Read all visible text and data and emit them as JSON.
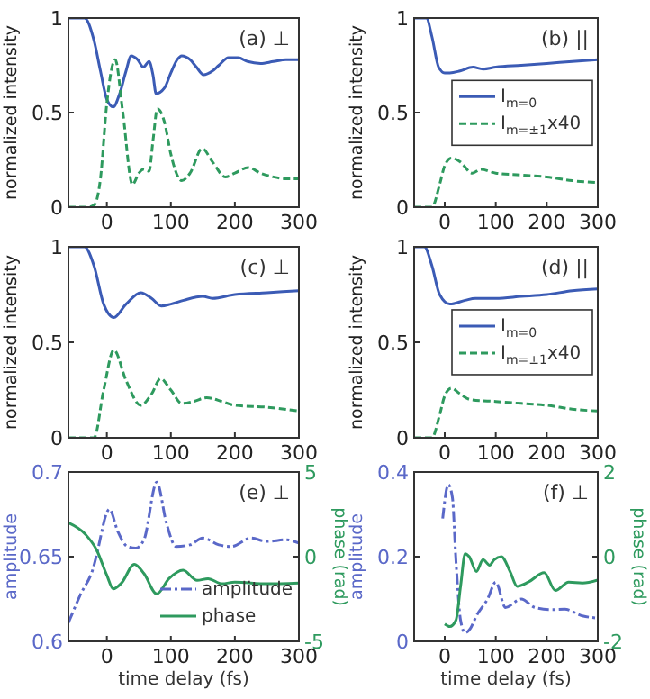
{
  "chart_data": [
    {
      "type": "line",
      "ylabel": "normalized intensity",
      "annotations": [
        "(a) ⊥"
      ],
      "xlim": [
        -60,
        300
      ],
      "xticks": [
        0,
        100,
        200,
        300
      ],
      "ylim": [
        0,
        1
      ],
      "yticks": [
        0,
        0.5,
        1
      ],
      "series": [
        {
          "color": "#3b5bb5",
          "line_style": "solid",
          "x": [
            -60,
            -35,
            -20,
            -10,
            0,
            10,
            20,
            30,
            38,
            48,
            57,
            66,
            72,
            77,
            90,
            100,
            110,
            117,
            130,
            140,
            151,
            165,
            175,
            190,
            205,
            220,
            240,
            260,
            280,
            300
          ],
          "values": [
            1,
            1,
            0.88,
            0.72,
            0.57,
            0.53,
            0.6,
            0.72,
            0.8,
            0.78,
            0.74,
            0.77,
            0.7,
            0.6,
            0.63,
            0.71,
            0.78,
            0.8,
            0.78,
            0.74,
            0.7,
            0.72,
            0.75,
            0.79,
            0.79,
            0.77,
            0.76,
            0.77,
            0.78,
            0.78
          ]
        },
        {
          "color": "#2e9a5e",
          "line_style": "dashed",
          "x": [
            -60,
            -30,
            -20,
            -10,
            0,
            13,
            25,
            40,
            50,
            57,
            66,
            72,
            79,
            90,
            100,
            117,
            130,
            149,
            165,
            185,
            200,
            221,
            240,
            260,
            280,
            300
          ],
          "values": [
            0,
            0,
            0.01,
            0.15,
            0.55,
            0.78,
            0.5,
            0.12,
            0.18,
            0.2,
            0.19,
            0.35,
            0.52,
            0.45,
            0.28,
            0.14,
            0.18,
            0.31,
            0.24,
            0.16,
            0.18,
            0.21,
            0.18,
            0.16,
            0.15,
            0.15
          ]
        }
      ]
    },
    {
      "type": "line",
      "ylabel": "normalized intensity",
      "annotations": [
        "(b) ||"
      ],
      "legend": "right",
      "xlim": [
        -60,
        300
      ],
      "xticks": [
        0,
        100,
        200,
        300
      ],
      "ylim": [
        0,
        1
      ],
      "yticks": [
        0,
        0.5,
        1
      ],
      "series": [
        {
          "name": "I$_{m=0}$",
          "color": "#3b5bb5",
          "line_style": "solid",
          "x": [
            -60,
            -36,
            -25,
            -12,
            0,
            10,
            30,
            55,
            75,
            100,
            150,
            200,
            250,
            300
          ],
          "values": [
            1,
            1,
            0.9,
            0.74,
            0.71,
            0.71,
            0.72,
            0.74,
            0.73,
            0.74,
            0.75,
            0.76,
            0.77,
            0.78
          ]
        },
        {
          "name": "I$_{m=±1}$x40",
          "color": "#2e9a5e",
          "line_style": "dashed",
          "x": [
            -60,
            -25,
            -10,
            0,
            13,
            30,
            54,
            71,
            100,
            150,
            200,
            250,
            300
          ],
          "values": [
            0,
            0,
            0.12,
            0.22,
            0.26,
            0.24,
            0.18,
            0.2,
            0.18,
            0.17,
            0.16,
            0.14,
            0.13
          ]
        }
      ]
    },
    {
      "type": "line",
      "ylabel": "normalized intensity",
      "annotations": [
        "(c) ⊥"
      ],
      "xlim": [
        -60,
        300
      ],
      "xticks": [
        0,
        100,
        200,
        300
      ],
      "ylim": [
        0,
        1
      ],
      "yticks": [
        0,
        0.5,
        1
      ],
      "series": [
        {
          "color": "#3b5bb5",
          "line_style": "solid",
          "x": [
            -60,
            -35,
            -20,
            -5,
            11,
            30,
            53,
            70,
            85,
            100,
            120,
            150,
            165,
            200,
            250,
            300
          ],
          "values": [
            1,
            1,
            0.9,
            0.7,
            0.63,
            0.7,
            0.76,
            0.73,
            0.69,
            0.7,
            0.72,
            0.74,
            0.73,
            0.75,
            0.76,
            0.77
          ]
        },
        {
          "color": "#2e9a5e",
          "line_style": "dashed",
          "x": [
            -60,
            -20,
            -5,
            11,
            30,
            53,
            70,
            84,
            100,
            117,
            135,
            156,
            180,
            200,
            250,
            300
          ],
          "values": [
            0,
            0,
            0.25,
            0.46,
            0.3,
            0.17,
            0.23,
            0.31,
            0.25,
            0.18,
            0.19,
            0.21,
            0.19,
            0.17,
            0.16,
            0.14
          ]
        }
      ]
    },
    {
      "type": "line",
      "ylabel": "normalized intensity",
      "annotations": [
        "(d) ||"
      ],
      "legend": "right",
      "xlim": [
        -60,
        300
      ],
      "xticks": [
        0,
        100,
        200,
        300
      ],
      "ylim": [
        0,
        1
      ],
      "yticks": [
        0,
        0.5,
        1
      ],
      "series": [
        {
          "name": "I$_{m=0}$",
          "color": "#3b5bb5",
          "line_style": "solid",
          "x": [
            -60,
            -40,
            -25,
            -10,
            10,
            40,
            60,
            100,
            150,
            200,
            250,
            300
          ],
          "values": [
            1,
            1,
            0.9,
            0.75,
            0.7,
            0.72,
            0.73,
            0.73,
            0.74,
            0.75,
            0.77,
            0.78
          ]
        },
        {
          "name": "I$_{m=±1}$x40",
          "color": "#2e9a5e",
          "line_style": "dashed",
          "x": [
            -60,
            -25,
            -10,
            0,
            13,
            30,
            50,
            100,
            150,
            200,
            250,
            300
          ],
          "values": [
            0,
            0,
            0.12,
            0.22,
            0.26,
            0.23,
            0.2,
            0.19,
            0.18,
            0.17,
            0.15,
            0.14
          ]
        }
      ]
    },
    {
      "type": "line",
      "xlabel": "time delay (fs)",
      "ylabel": "amplitude",
      "y2label": "phase (rad)",
      "annotations": [
        "(e) ⊥"
      ],
      "legend": "bottom right",
      "xlim": [
        -60,
        300
      ],
      "xticks": [
        0,
        100,
        200,
        300
      ],
      "ylim": [
        0.6,
        0.7
      ],
      "yticks": [
        0.6,
        0.65,
        0.7
      ],
      "y2lim": [
        -5,
        5
      ],
      "y2ticks": [
        -5,
        0,
        5
      ],
      "series": [
        {
          "name": "amplitude",
          "color": "#5a68c8",
          "line_style": "dashdot",
          "x": [
            -60,
            -42,
            -20,
            -16,
            4,
            17,
            32,
            45,
            58,
            78,
            93,
            108,
            130,
            150,
            175,
            195,
            225,
            250,
            280,
            300
          ],
          "values": [
            0.611,
            0.627,
            0.645,
            0.651,
            0.678,
            0.665,
            0.656,
            0.655,
            0.66,
            0.694,
            0.67,
            0.656,
            0.657,
            0.661,
            0.657,
            0.656,
            0.661,
            0.659,
            0.66,
            0.658
          ]
        },
        {
          "name": "phase",
          "color": "#2e9a5e",
          "line_style": "solid",
          "axis": "y2",
          "x": [
            -60,
            -33,
            -16,
            0,
            10,
            23,
            43,
            58,
            78,
            97,
            119,
            141,
            158,
            180,
            200,
            250,
            300
          ],
          "values": [
            2,
            1.3,
            0.4,
            -1.1,
            -1.9,
            -1.55,
            -0.45,
            -1,
            -2.2,
            -1.3,
            -0.8,
            -1.4,
            -1.3,
            -1.6,
            -1.5,
            -1.6,
            -1.55
          ]
        }
      ]
    },
    {
      "type": "line",
      "xlabel": "time delay (fs)",
      "ylabel": "amplitude",
      "y2label": "phase (rad)",
      "annotations": [
        "(f) ⊥"
      ],
      "xlim": [
        -60,
        300
      ],
      "xticks": [
        0,
        100,
        200,
        300
      ],
      "ylim": [
        0,
        0.4
      ],
      "yticks": [
        0,
        0.2,
        0.4
      ],
      "y2lim": [
        -2,
        2
      ],
      "y2ticks": [
        -2,
        0,
        2
      ],
      "series": [
        {
          "color": "#5a68c8",
          "line_style": "dashdot",
          "x": [
            -4,
            7,
            15,
            22,
            31,
            40,
            50,
            62,
            84,
            100,
            119,
            150,
            177,
            210,
            235,
            270,
            300
          ],
          "values": [
            0.29,
            0.37,
            0.34,
            0.19,
            0.05,
            0.02,
            0.03,
            0.06,
            0.1,
            0.14,
            0.08,
            0.1,
            0.08,
            0.075,
            0.076,
            0.06,
            0.055
          ]
        },
        {
          "color": "#2e9a5e",
          "line_style": "solid",
          "axis": "y2",
          "x": [
            0,
            10,
            22,
            31,
            40,
            48,
            62,
            75,
            88,
            97,
            111,
            128,
            142,
            164,
            195,
            217,
            243,
            270,
            300
          ],
          "values": [
            -1.59,
            -1.65,
            -1.5,
            -0.7,
            0.07,
            0,
            -0.35,
            -0.07,
            -0.2,
            -0.07,
            0,
            -0.35,
            -0.7,
            -0.6,
            -0.38,
            -0.8,
            -0.6,
            -0.62,
            -0.55
          ]
        }
      ]
    }
  ]
}
